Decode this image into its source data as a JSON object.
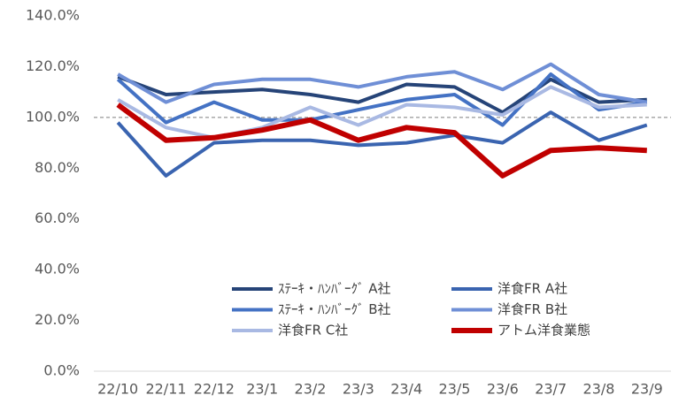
{
  "chart_data": {
    "type": "line",
    "categories": [
      "22/10",
      "22/11",
      "22/12",
      "23/1",
      "23/2",
      "23/3",
      "23/4",
      "23/5",
      "23/6",
      "23/7",
      "23/8",
      "23/9"
    ],
    "series": [
      {
        "name": "ｽﾃｰｷ・ﾊﾝﾊﾞｰｸﾞ A社",
        "color": "#264478",
        "values": [
          116,
          109,
          110,
          111,
          109,
          106,
          113,
          112,
          102,
          115,
          106,
          107
        ]
      },
      {
        "name": "洋食FR A社",
        "color": "#3a64b0",
        "values": [
          98,
          77,
          90,
          91,
          91,
          89,
          90,
          93,
          90,
          102,
          91,
          97
        ]
      },
      {
        "name": "ｽﾃｰｷ・ﾊﾝﾊﾞｰｸﾞ B社",
        "color": "#4472c4",
        "values": [
          115,
          98,
          106,
          99,
          99,
          103,
          107,
          109,
          97,
          117,
          103,
          106
        ]
      },
      {
        "name": "洋食FR B社",
        "color": "#6f8fd6",
        "values": [
          117,
          106,
          113,
          115,
          115,
          112,
          116,
          118,
          111,
          121,
          109,
          106
        ]
      },
      {
        "name": "洋食FR C社",
        "color": "#a9b9e3",
        "values": [
          107,
          96,
          92,
          96,
          104,
          97,
          105,
          104,
          101,
          112,
          104,
          105
        ]
      },
      {
        "name": "アトム洋食業態",
        "color": "#c00000",
        "values": [
          105,
          91,
          92,
          95,
          99,
          91,
          96,
          94,
          77,
          87,
          88,
          87
        ]
      }
    ],
    "ylim": [
      0,
      140
    ],
    "yticks": [
      {
        "value": 0,
        "label": "0.0%"
      },
      {
        "value": 20,
        "label": "20.0%"
      },
      {
        "value": 40,
        "label": "40.0%"
      },
      {
        "value": 60,
        "label": "60.0%"
      },
      {
        "value": 80,
        "label": "80.0%"
      },
      {
        "value": 100,
        "label": "100.0%"
      },
      {
        "value": 120,
        "label": "120.0%"
      },
      {
        "value": 140,
        "label": "140.0%"
      }
    ],
    "reference_line": 100
  }
}
